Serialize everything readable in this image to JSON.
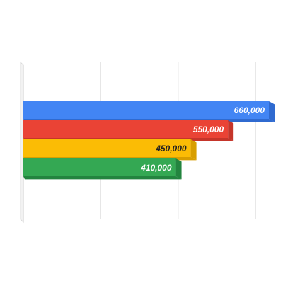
{
  "chart_data": {
    "type": "bar",
    "orientation": "horizontal",
    "style": "3d",
    "categories": [
      "",
      "",
      "",
      ""
    ],
    "values": [
      660000,
      550000,
      450000,
      410000
    ],
    "value_labels": [
      "660,000",
      "550,000",
      "450,000",
      "410,000"
    ],
    "colors": [
      "#4285F4",
      "#EA4335",
      "#FBBC05",
      "#34A853"
    ],
    "side_colors": [
      "#2F6AD0",
      "#C5352A",
      "#D89E00",
      "#23843F"
    ],
    "label_colors": [
      "#ffffff",
      "#ffffff",
      "#222222",
      "#ffffff"
    ],
    "xlim": [
      0,
      660000
    ],
    "grid": true,
    "title": "",
    "xlabel": "",
    "ylabel": ""
  }
}
